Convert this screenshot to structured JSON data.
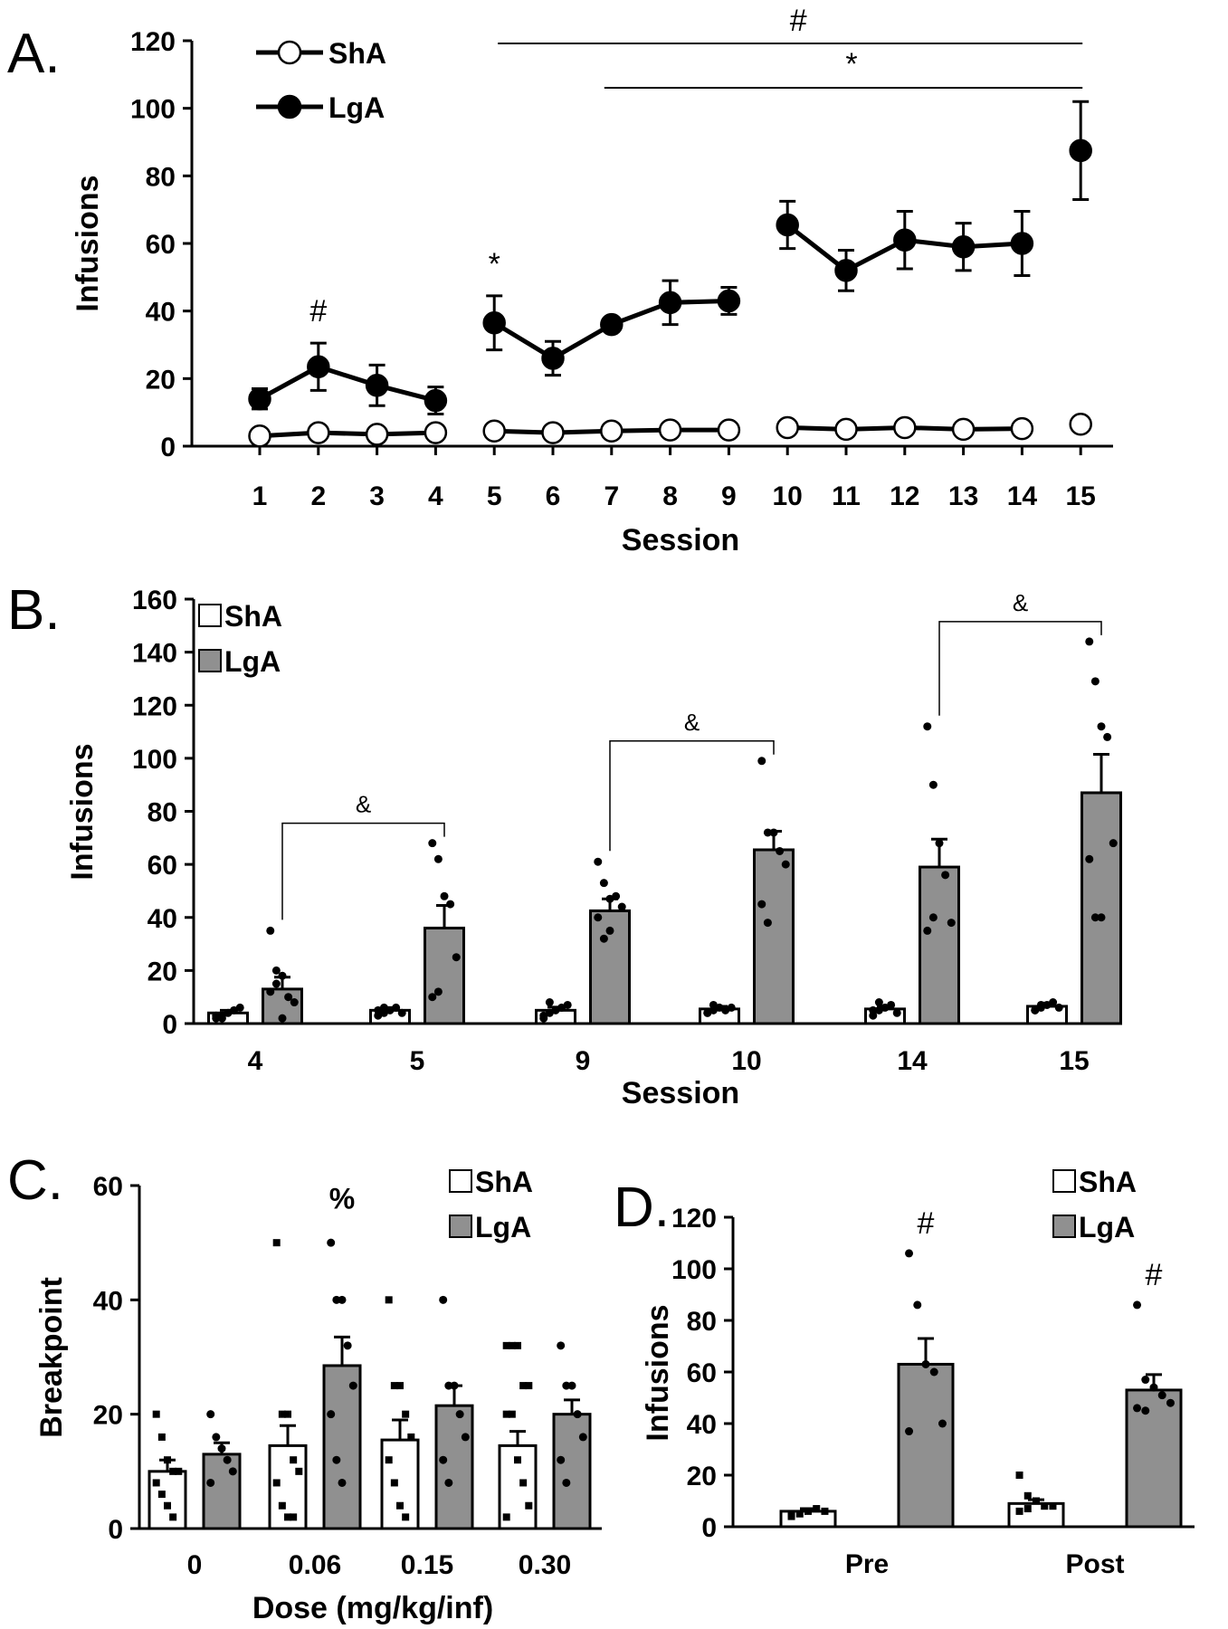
{
  "chart_data": [
    {
      "panel": "A",
      "panel_label": "A.",
      "type": "line",
      "xlabel": "Session",
      "ylabel": "Infusions",
      "ylim": [
        0,
        120
      ],
      "yticks": [
        "0",
        "20",
        "40",
        "60",
        "80",
        "100",
        "120"
      ],
      "categories": [
        "1",
        "2",
        "3",
        "4",
        "5",
        "6",
        "7",
        "8",
        "9",
        "10",
        "11",
        "12",
        "13",
        "14",
        "15"
      ],
      "segments": [
        [
          1,
          4
        ],
        [
          5,
          9
        ],
        [
          10,
          14
        ],
        [
          15,
          15
        ]
      ],
      "series": [
        {
          "name": "ShA",
          "marker": "open-circle",
          "values": [
            3,
            4,
            3.5,
            4,
            4.5,
            4,
            4.5,
            4.8,
            4.8,
            5.5,
            5,
            5.5,
            5,
            5.2,
            6.5
          ],
          "errors": [
            0,
            0,
            0,
            0,
            0,
            0,
            0,
            0,
            0,
            0,
            0,
            0,
            0,
            0,
            0
          ]
        },
        {
          "name": "LgA",
          "marker": "filled-circle",
          "values": [
            14,
            23.5,
            18,
            13.5,
            36.5,
            26,
            36,
            42.5,
            43,
            65.5,
            52,
            61,
            59,
            60,
            87.5
          ],
          "errors": [
            3,
            7,
            6,
            4,
            8,
            5,
            0,
            6.5,
            4,
            7,
            6,
            8.5,
            7,
            9.5,
            14.5
          ]
        }
      ],
      "annotations": [
        {
          "text": "#",
          "at": "session 2"
        },
        {
          "text": "*",
          "at": "session 5"
        },
        {
          "text": "#",
          "span": [
            "5",
            "15"
          ]
        },
        {
          "text": "*",
          "span": [
            "7",
            "15"
          ]
        }
      ],
      "legend": "top-left"
    },
    {
      "panel": "B",
      "panel_label": "B.",
      "type": "bar",
      "xlabel": "Session",
      "ylabel": "Infusions",
      "ylim": [
        0,
        160
      ],
      "yticks": [
        "0",
        "20",
        "40",
        "60",
        "80",
        "100",
        "120",
        "140",
        "160"
      ],
      "categories": [
        "4",
        "5",
        "9",
        "10",
        "14",
        "15"
      ],
      "series": [
        {
          "name": "ShA",
          "color": "#ffffff",
          "values": [
            4,
            5,
            5,
            5.5,
            5.5,
            6.5
          ],
          "errors": [
            1,
            1,
            1.2,
            1,
            1,
            1.2
          ],
          "points": [
            [
              2,
              3,
              4,
              5,
              6,
              3,
              2
            ],
            [
              3,
              4,
              5,
              6,
              4,
              5,
              6
            ],
            [
              3,
              4,
              5,
              6,
              7,
              2,
              8
            ],
            [
              4,
              5,
              6,
              5,
              6,
              4,
              7
            ],
            [
              3,
              5,
              6,
              7,
              4,
              5,
              8
            ],
            [
              5,
              6,
              7,
              8,
              6,
              5,
              7
            ]
          ]
        },
        {
          "name": "LgA",
          "color": "#909090",
          "values": [
            13,
            36,
            42.5,
            65.5,
            59,
            87
          ],
          "errors": [
            4.5,
            8.5,
            4.5,
            7,
            10.5,
            14.5
          ],
          "points": [
            [
              35,
              20,
              18,
              10,
              8,
              12,
              15,
              2
            ],
            [
              68,
              62,
              48,
              45,
              25,
              10,
              12
            ],
            [
              61,
              53,
              47,
              48,
              44,
              40,
              32,
              35
            ],
            [
              99,
              72,
              72,
              65,
              60,
              45,
              38
            ],
            [
              112,
              90,
              68,
              56,
              38,
              35,
              40
            ],
            [
              144,
              129,
              112,
              108,
              68,
              62,
              40,
              40
            ]
          ]
        }
      ],
      "annotations": [
        {
          "text": "&",
          "span": [
            "4",
            "5"
          ],
          "group": "LgA"
        },
        {
          "text": "&",
          "span": [
            "9",
            "10"
          ],
          "group": "LgA"
        },
        {
          "text": "&",
          "span": [
            "14",
            "15"
          ],
          "group": "LgA"
        }
      ],
      "legend": "top-left"
    },
    {
      "panel": "C",
      "panel_label": "C.",
      "type": "bar",
      "xlabel": "Dose (mg/kg/inf)",
      "ylabel": "Breakpoint",
      "ylim": [
        0,
        60
      ],
      "yticks": [
        "0",
        "20",
        "40",
        "60"
      ],
      "categories": [
        "0",
        "0.06",
        "0.15",
        "0.30"
      ],
      "series": [
        {
          "name": "ShA",
          "color": "#ffffff",
          "values": [
            10,
            14.5,
            15.5,
            14.5
          ],
          "errors": [
            2,
            3.5,
            3.5,
            2.5
          ],
          "points": [
            [
              20,
              16,
              12,
              10,
              10,
              8,
              6,
              4,
              2
            ],
            [
              50,
              20,
              20,
              12,
              10,
              8,
              4,
              2,
              2
            ],
            [
              40,
              25,
              25,
              20,
              16,
              12,
              8,
              4,
              2
            ],
            [
              32,
              32,
              32,
              25,
              25,
              20,
              20,
              12,
              8,
              4,
              2
            ]
          ]
        },
        {
          "name": "LgA",
          "color": "#909090",
          "values": [
            13,
            28.5,
            21.5,
            20
          ],
          "errors": [
            2,
            5,
            3.5,
            2.5
          ],
          "points": [
            [
              20,
              16,
              14,
              12,
              10,
              8
            ],
            [
              50,
              40,
              40,
              32,
              25,
              20,
              12,
              8
            ],
            [
              40,
              25,
              25,
              20,
              16,
              12,
              8
            ],
            [
              32,
              25,
              25,
              20,
              16,
              12,
              8
            ]
          ]
        }
      ],
      "annotations": [
        {
          "text": "%",
          "at": "0.06",
          "group": "LgA"
        }
      ],
      "legend": "top-right"
    },
    {
      "panel": "D",
      "panel_label": "D.",
      "type": "bar",
      "xlabel": "",
      "ylabel": "Infusions",
      "ylim": [
        0,
        120
      ],
      "yticks": [
        "0",
        "20",
        "40",
        "60",
        "80",
        "100",
        "120"
      ],
      "categories": [
        "Pre",
        "Post"
      ],
      "series": [
        {
          "name": "ShA",
          "color": "#ffffff",
          "values": [
            6,
            9
          ],
          "errors": [
            1,
            1.5
          ],
          "points": [
            [
              4,
              5,
              6,
              7,
              6,
              5
            ],
            [
              20,
              12,
              10,
              8,
              8,
              6,
              7
            ]
          ]
        },
        {
          "name": "LgA",
          "color": "#909090",
          "values": [
            63,
            53
          ],
          "errors": [
            10,
            6
          ],
          "points": [
            [
              106,
              86,
              63,
              60,
              40,
              37
            ],
            [
              86,
              57,
              54,
              51,
              48,
              46,
              45
            ]
          ]
        }
      ],
      "annotations": [
        {
          "text": "#",
          "at": "Pre",
          "group": "LgA"
        },
        {
          "text": "#",
          "at": "Post",
          "group": "LgA"
        }
      ],
      "legend": "top-right"
    }
  ]
}
